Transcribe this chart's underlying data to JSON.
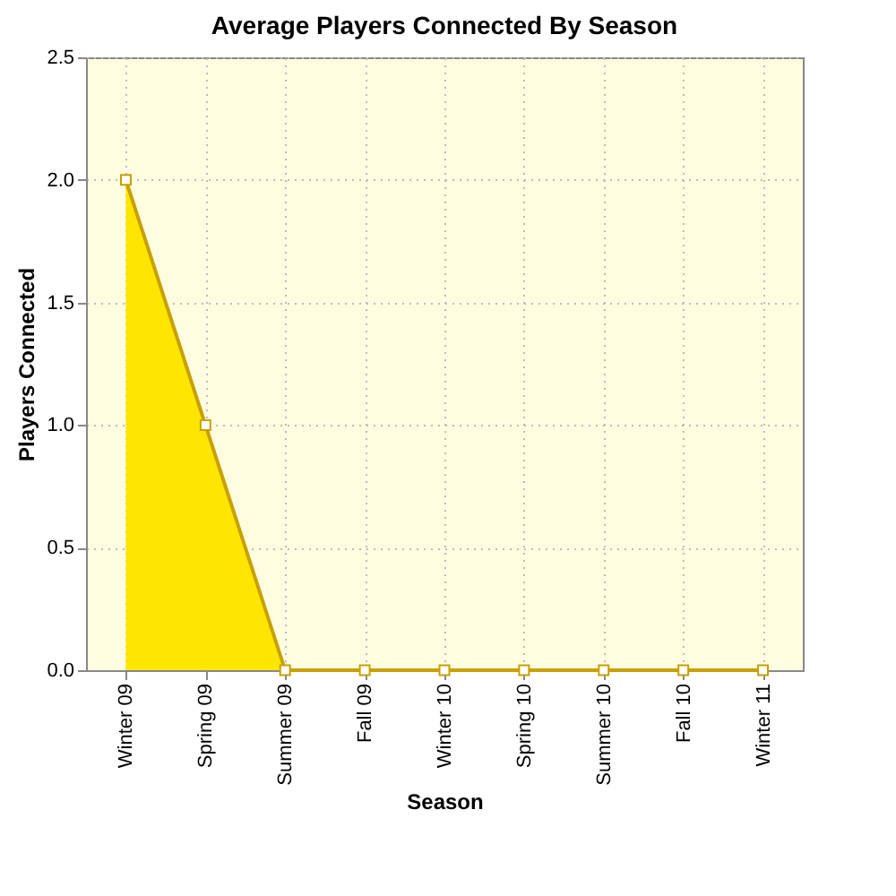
{
  "chart_data": {
    "type": "area",
    "title": "Average Players Connected By Season",
    "xlabel": "Season",
    "ylabel": "Players Connected",
    "categories": [
      "Winter 09",
      "Spring 09",
      "Summer 09",
      "Fall 09",
      "Winter 10",
      "Spring 10",
      "Summer 10",
      "Fall 10",
      "Winter 11"
    ],
    "series": [
      {
        "color": "#ffe600",
        "values": [
          2,
          1,
          0,
          0,
          0,
          0,
          0,
          0,
          0
        ]
      }
    ],
    "ylim": [
      0,
      2.5
    ],
    "yticks": [
      {
        "value": 0,
        "label": "0.0"
      },
      0.5,
      {
        "value": 1,
        "label": "1.0"
      },
      1.5,
      {
        "value": 2,
        "label": "2.0"
      },
      2.5
    ],
    "grid": true,
    "marker": "square",
    "line_style": "solid"
  }
}
